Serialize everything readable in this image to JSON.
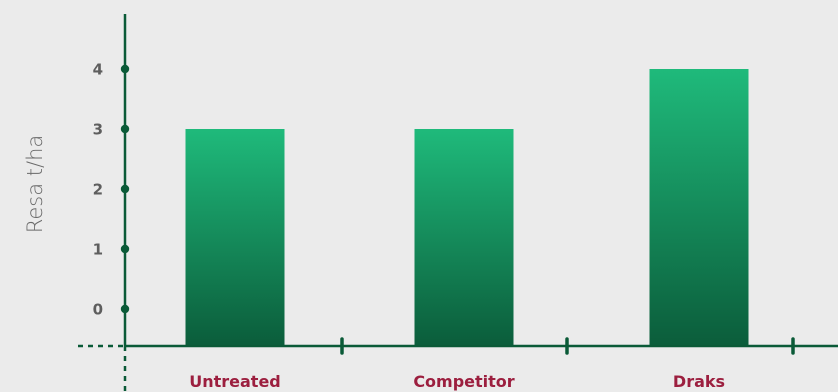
{
  "chart_data": {
    "type": "bar",
    "title": "",
    "xlabel": "",
    "ylabel": "Resa t/ha",
    "categories": [
      "Untreated",
      "Competitor",
      "Draks"
    ],
    "values": [
      3,
      3,
      4
    ],
    "yticks": [
      0,
      1,
      2,
      3,
      4
    ],
    "ylim": [
      0,
      4
    ],
    "grid": false,
    "legend": "none",
    "colors": {
      "bar_top": "#1fba7b",
      "bar_bottom": "#0b5d3b",
      "axis": "#0a5a37",
      "category_label": "#9c1f3f",
      "tick_label": "#5e5e5e",
      "axis_title": "#6a6a6a",
      "background": "#ebebeb"
    }
  }
}
